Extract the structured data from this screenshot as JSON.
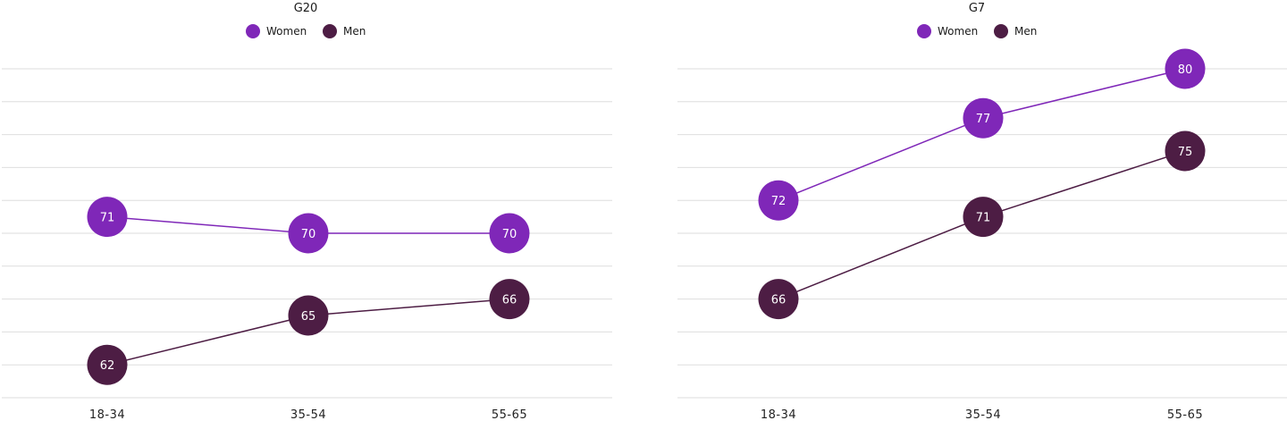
{
  "chart_data": [
    {
      "type": "line",
      "title": "G20",
      "categories": [
        "18-34",
        "35-54",
        "55-65"
      ],
      "series": [
        {
          "name": "Women",
          "color": "#7f27b8",
          "values": [
            71,
            70,
            70
          ]
        },
        {
          "name": "Men",
          "color": "#4d1d44",
          "values": [
            62,
            65,
            66
          ]
        }
      ],
      "ylim": [
        60,
        80
      ],
      "grid": true,
      "legend": "top-center"
    },
    {
      "type": "line",
      "title": "G7",
      "categories": [
        "18-34",
        "35-54",
        "55-65"
      ],
      "series": [
        {
          "name": "Women",
          "color": "#7f27b8",
          "values": [
            72,
            77,
            80
          ]
        },
        {
          "name": "Men",
          "color": "#4d1d44",
          "values": [
            66,
            71,
            75
          ]
        }
      ],
      "ylim": [
        60,
        80
      ],
      "grid": true,
      "legend": "top-center"
    }
  ]
}
